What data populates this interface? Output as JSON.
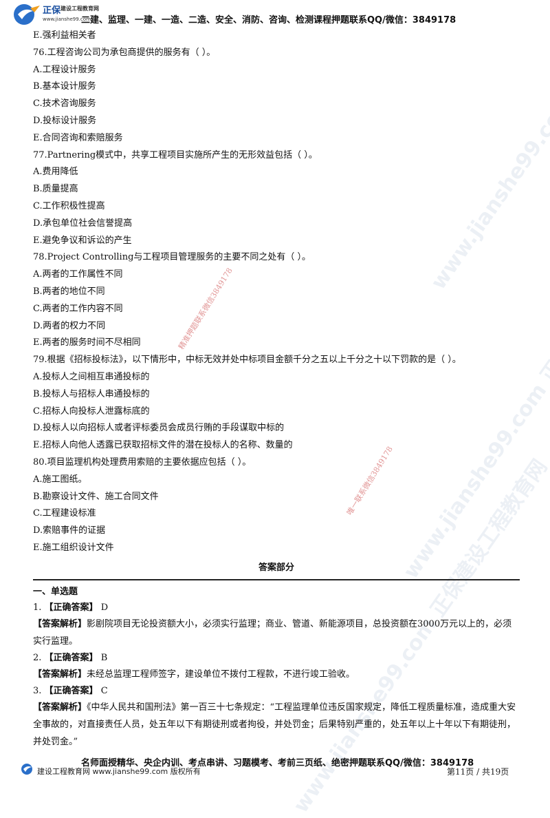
{
  "header": {
    "brand": "正保",
    "brand_sub": "建设工程教育网",
    "url": "www.jianshe99.com",
    "text": "二建、监理、一建、一造、二造、安全、消防、咨询、检测课程押题联系QQ/微信：3849178"
  },
  "questions": [
    {
      "id": "q75e",
      "lines": [
        "E.强利益相关者"
      ]
    },
    {
      "id": "q76",
      "lines": [
        "76.工程咨询公司为承包商提供的服务有（    ）。",
        "A.工程设计服务",
        "B.基本设计服务",
        "C.技术咨询服务",
        "D.投标设计服务",
        "E.合同咨询和索赔服务"
      ]
    },
    {
      "id": "q77",
      "lines": [
        "77.Partnering模式中，共享工程项目实施所产生的无形效益包括（    ）。",
        "A.费用降低",
        "B.质量提高",
        "C.工作积极性提高",
        "D.承包单位社会信誉提高",
        "E.避免争议和诉讼的产生"
      ]
    },
    {
      "id": "q78",
      "lines": [
        "78.Project Controlling与工程项目管理服务的主要不同之处有（    ）。",
        "A.两者的工作属性不同",
        "B.两者的地位不同",
        "C.两者的工作内容不同",
        "D.两者的权力不同",
        "E.两者的服务时间不尽相同"
      ]
    },
    {
      "id": "q79",
      "lines": [
        "79.根据《招标投标法》，以下情形中，中标无效并处中标项目金额千分之五以上千分之十以下罚款的是（    ）。",
        "A.投标人之间相互串通投标的",
        "B.投标人与招标人串通投标的",
        "C.招标人向投标人泄露标底的",
        "D.投标人以向招标人或者评标委员会成员行贿的手段谋取中标的",
        "E.招标人向他人透露已获取招标文件的潜在投标人的名称、数量的"
      ]
    },
    {
      "id": "q80",
      "lines": [
        "80.项目监理机构处理费用索赔的主要依据应包括（    ）。",
        "A.施工图纸。",
        "B.勘察设计文件、施工合同文件",
        "C.工程建设标准",
        "D.索赔事件的证据",
        "E.施工组织设计文件"
      ]
    }
  ],
  "answers": {
    "section_title": "答案部分",
    "part_title": "一、单选题",
    "correct_label": "【正确答案】",
    "analysis_label": "【答案解析】",
    "items": [
      {
        "no": "1.",
        "answer": "D",
        "analysis": "影剧院项目无论投资额大小，必须实行监理；商业、管道、新能源项目，总投资额在3000万元以上的，必须实行监理。"
      },
      {
        "no": "2.",
        "answer": "B",
        "analysis": "未经总监理工程师签字，建设单位不拨付工程款，不进行竣工验收。"
      },
      {
        "no": "3.",
        "answer": "C",
        "analysis": "《中华人民共和国刑法》第一百三十七条规定：“工程监理单位违反国家规定，降低工程质量标准，造成重大安全事故的，对直接责任人员，处五年以下有期徒刑或者拘役，并处罚金；后果特别严重的，处五年以上十年以下有期徒刑，并处罚金。”"
      }
    ]
  },
  "footer": {
    "text": "名师面授精华、央企内训、考点串讲、习题模考、考前三页纸、绝密押题联系QQ/微信：3849178",
    "brand": "建设工程教育网 www.jianshe99.com 版权所有",
    "page": "第11页  / 共19页"
  }
}
